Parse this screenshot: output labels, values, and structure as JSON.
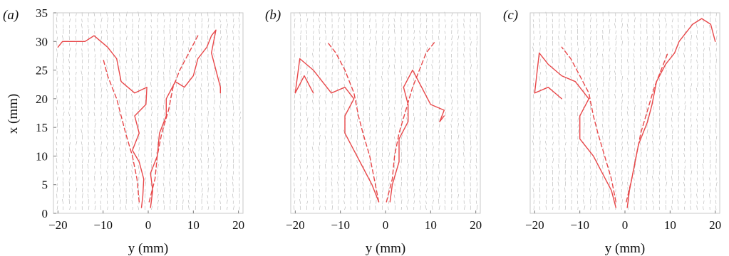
{
  "figure": {
    "panels": [
      {
        "label": "(a)",
        "xlabel": "y (mm)",
        "ylabel": "x (mm)"
      },
      {
        "label": "(b)",
        "xlabel": "y (mm)",
        "ylabel": ""
      },
      {
        "label": "(c)",
        "xlabel": "y (mm)",
        "ylabel": ""
      }
    ]
  },
  "colors": {
    "trajectory": "#e8484a",
    "vectors": "#9a9a9a",
    "frame": "#c8c8c8"
  },
  "chart_data": [
    {
      "type": "line",
      "title": "(a)",
      "xlabel": "y (mm)",
      "ylabel": "x (mm)",
      "xlim": [
        -21,
        21
      ],
      "ylim": [
        0,
        35
      ],
      "xticks": [
        -20,
        -10,
        0,
        10,
        20
      ],
      "yticks": [
        0,
        5,
        10,
        15,
        20,
        25,
        30,
        35
      ],
      "grid": false,
      "background": "velocity vector field",
      "series": [
        {
          "style": "solid",
          "points": [
            [
              -1.5,
              1
            ],
            [
              -1.2,
              3
            ],
            [
              -1,
              6
            ],
            [
              -2,
              9
            ],
            [
              -3.5,
              11
            ],
            [
              -2,
              14
            ],
            [
              -3,
              17
            ],
            [
              -0.5,
              19
            ],
            [
              -0.3,
              22
            ],
            [
              -3,
              21
            ],
            [
              -6,
              23
            ],
            [
              -7,
              27
            ],
            [
              -9,
              29
            ],
            [
              -12,
              31
            ],
            [
              -14,
              30
            ],
            [
              -17,
              30
            ],
            [
              -19,
              30
            ],
            [
              -20,
              29
            ]
          ]
        },
        {
          "style": "solid",
          "points": [
            [
              0.5,
              1
            ],
            [
              1,
              4
            ],
            [
              0.5,
              7
            ],
            [
              2,
              10
            ],
            [
              2.5,
              14
            ],
            [
              4,
              17
            ],
            [
              4,
              20
            ],
            [
              6,
              23
            ],
            [
              8,
              22
            ],
            [
              10,
              24
            ],
            [
              11,
              27
            ],
            [
              13,
              29
            ],
            [
              14,
              31
            ],
            [
              15,
              32
            ],
            [
              14,
              28
            ],
            [
              15,
              25
            ],
            [
              16,
              22
            ],
            [
              16,
              21
            ]
          ]
        },
        {
          "style": "dashed",
          "points": [
            [
              -2,
              2
            ],
            [
              -2.5,
              6
            ],
            [
              -3.5,
              10
            ],
            [
              -5,
              14
            ],
            [
              -6,
              17
            ],
            [
              -7,
              20
            ],
            [
              -9,
              24
            ],
            [
              -10,
              27
            ]
          ]
        },
        {
          "style": "dashed",
          "points": [
            [
              0.2,
              2
            ],
            [
              1.5,
              6
            ],
            [
              2,
              10
            ],
            [
              3,
              14
            ],
            [
              4.5,
              18
            ],
            [
              5.5,
              22
            ],
            [
              7,
              25
            ],
            [
              9,
              28
            ],
            [
              11,
              31
            ]
          ]
        }
      ]
    },
    {
      "type": "line",
      "title": "(b)",
      "xlabel": "y (mm)",
      "ylabel": "",
      "xlim": [
        -21,
        21
      ],
      "ylim": [
        0,
        35
      ],
      "xticks": [
        -20,
        -10,
        0,
        10,
        20
      ],
      "yticks": [],
      "grid": false,
      "background": "velocity vector field",
      "series": [
        {
          "style": "solid",
          "points": [
            [
              -1.5,
              2
            ],
            [
              -3,
              5
            ],
            [
              -5,
              8
            ],
            [
              -7,
              11
            ],
            [
              -9,
              14
            ],
            [
              -9,
              17
            ],
            [
              -7,
              20
            ],
            [
              -9,
              22
            ],
            [
              -12,
              21
            ],
            [
              -14,
              23
            ],
            [
              -16,
              25
            ],
            [
              -19,
              27
            ],
            [
              -20,
              21
            ],
            [
              -18,
              24
            ],
            [
              -16,
              21
            ]
          ]
        },
        {
          "style": "solid",
          "points": [
            [
              1,
              2
            ],
            [
              1.5,
              5
            ],
            [
              3,
              9
            ],
            [
              3,
              13
            ],
            [
              5,
              16
            ],
            [
              5,
              19
            ],
            [
              4,
              22
            ],
            [
              6,
              25
            ],
            [
              8,
              22
            ],
            [
              10,
              19
            ],
            [
              13,
              18
            ],
            [
              12,
              16
            ],
            [
              13,
              17
            ]
          ]
        },
        {
          "style": "dashed",
          "points": [
            [
              -1.5,
              2
            ],
            [
              -2.5,
              6
            ],
            [
              -3.5,
              10
            ],
            [
              -5,
              14
            ],
            [
              -6,
              17
            ],
            [
              -7,
              21
            ],
            [
              -9,
              25
            ],
            [
              -11,
              28
            ],
            [
              -13,
              30
            ]
          ]
        },
        {
          "style": "dashed",
          "points": [
            [
              0.2,
              2
            ],
            [
              1.5,
              6
            ],
            [
              2,
              10
            ],
            [
              3,
              14
            ],
            [
              4.5,
              18
            ],
            [
              6,
              22
            ],
            [
              7.5,
              25
            ],
            [
              9,
              28
            ],
            [
              11,
              30
            ]
          ]
        }
      ]
    },
    {
      "type": "line",
      "title": "(c)",
      "xlabel": "y (mm)",
      "ylabel": "",
      "xlim": [
        -21,
        21
      ],
      "ylim": [
        0,
        35
      ],
      "xticks": [
        -20,
        -10,
        0,
        10,
        20
      ],
      "yticks": [],
      "grid": false,
      "background": "velocity vector field",
      "series": [
        {
          "style": "solid",
          "points": [
            [
              -2,
              1
            ],
            [
              -3,
              4
            ],
            [
              -5,
              7
            ],
            [
              -7,
              10
            ],
            [
              -10,
              13
            ],
            [
              -10,
              17
            ],
            [
              -8,
              20
            ],
            [
              -11,
              23
            ],
            [
              -14,
              24
            ],
            [
              -17,
              26
            ],
            [
              -19,
              28
            ],
            [
              -20,
              21
            ],
            [
              -17,
              22
            ],
            [
              -14,
              20
            ]
          ]
        },
        {
          "style": "solid",
          "points": [
            [
              0.5,
              1
            ],
            [
              1,
              4
            ],
            [
              2,
              8
            ],
            [
              3,
              12
            ],
            [
              5,
              16
            ],
            [
              6,
              19
            ],
            [
              7,
              23
            ],
            [
              9,
              26
            ],
            [
              11,
              28
            ],
            [
              12,
              30
            ],
            [
              15,
              33
            ],
            [
              17,
              34
            ],
            [
              19,
              33
            ],
            [
              20,
              30
            ]
          ]
        },
        {
          "style": "dashed",
          "points": [
            [
              -2,
              2
            ],
            [
              -3,
              6
            ],
            [
              -4.5,
              10
            ],
            [
              -6,
              14
            ],
            [
              -7,
              17
            ],
            [
              -8,
              21
            ],
            [
              -10,
              24
            ],
            [
              -12,
              27
            ],
            [
              -14,
              29
            ]
          ]
        },
        {
          "style": "dashed",
          "points": [
            [
              0.3,
              2
            ],
            [
              1.5,
              6
            ],
            [
              2.5,
              10
            ],
            [
              3.5,
              14
            ],
            [
              5,
              18
            ],
            [
              6.5,
              22
            ],
            [
              8,
              25
            ],
            [
              9.5,
              28
            ]
          ]
        }
      ]
    }
  ]
}
